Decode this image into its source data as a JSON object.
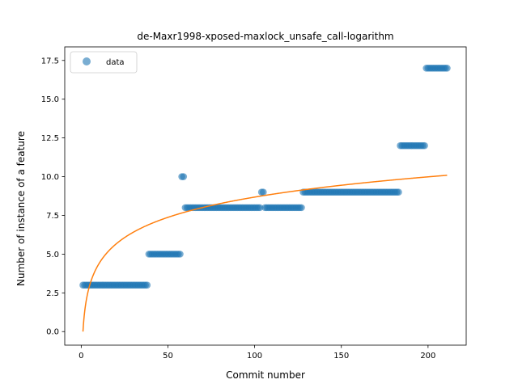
{
  "chart_data": {
    "type": "scatter",
    "title": "de-Maxr1998-xposed-maxlock_unsafe_call-logarithm",
    "xlabel": "Commit number",
    "ylabel": "Number of instance of a feature",
    "xlim": [
      -9.5,
      222
    ],
    "ylim": [
      -0.875,
      18.375
    ],
    "xticks": [
      0,
      50,
      100,
      150,
      200
    ],
    "yticks": [
      0.0,
      2.5,
      5.0,
      7.5,
      10.0,
      12.5,
      15.0,
      17.5
    ],
    "ytick_labels": [
      "0.0",
      "2.5",
      "5.0",
      "7.5",
      "10.0",
      "12.5",
      "15.0",
      "17.5"
    ],
    "legend": {
      "position": "top-left",
      "entries": [
        "data"
      ]
    },
    "grid": false,
    "colors": {
      "points": "#1f77b4",
      "fit": "#ff7f0e"
    },
    "series": [
      {
        "name": "data",
        "kind": "scatter",
        "segments": [
          {
            "x_start": 1,
            "x_end": 38,
            "y": 3
          },
          {
            "x_start": 39,
            "x_end": 57,
            "y": 5
          },
          {
            "x_start": 58,
            "x_end": 59,
            "y": 10
          },
          {
            "x_start": 60,
            "x_end": 103,
            "y": 8
          },
          {
            "x_start": 104,
            "x_end": 105,
            "y": 9
          },
          {
            "x_start": 106,
            "x_end": 127,
            "y": 8
          },
          {
            "x_start": 128,
            "x_end": 183,
            "y": 9
          },
          {
            "x_start": 184,
            "x_end": 198,
            "y": 12
          },
          {
            "x_start": 199,
            "x_end": 211,
            "y": 17
          }
        ]
      },
      {
        "kind": "line",
        "fit": {
          "x_start": 1,
          "x_end": 211,
          "a": 1.885,
          "b": 0
        }
      }
    ]
  }
}
